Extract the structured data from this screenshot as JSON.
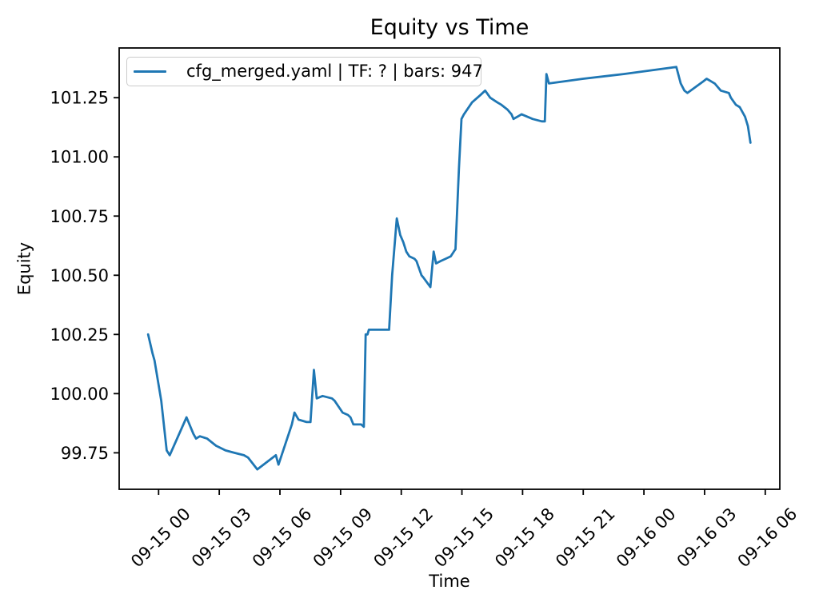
{
  "figure": {
    "title": "Equity vs Time",
    "x_axis_label": "Time",
    "y_axis_label": "Equity"
  },
  "legend": {
    "position": "upper left",
    "entries": [
      {
        "label": "cfg_merged.yaml | TF: ? | bars: 947",
        "color": "#1f77b4"
      }
    ]
  },
  "colors": {
    "line": "#1f77b4",
    "text": "#000000",
    "spine": "#000000",
    "legend_border": "#cbcbcb",
    "background": "#ffffff"
  },
  "chart_data": {
    "type": "line",
    "title": "Equity vs Time",
    "xlabel": "Time",
    "ylabel": "Equity",
    "grid": false,
    "legend_position": "upper left",
    "x_unit": "hours relative to 09-15 00",
    "xlim_hours": [
      -1.95,
      30.72
    ],
    "ylim": [
      99.596,
      101.46
    ],
    "x_ticks": {
      "hours": [
        0,
        3,
        6,
        9,
        12,
        15,
        18,
        21,
        24,
        27,
        30
      ],
      "labels": [
        "09-15 00",
        "09-15 03",
        "09-15 06",
        "09-15 09",
        "09-15 12",
        "09-15 15",
        "09-15 18",
        "09-15 21",
        "09-16 00",
        "09-16 03",
        "09-16 06"
      ]
    },
    "y_ticks": {
      "values": [
        99.75,
        100.0,
        100.25,
        100.5,
        100.75,
        101.0,
        101.25
      ],
      "labels": [
        "99.75",
        "100.00",
        "100.25",
        "100.50",
        "100.75",
        "101.00",
        "101.25"
      ]
    },
    "series": [
      {
        "name": "cfg_merged.yaml | TF: ? | bars: 947",
        "color": "#1f77b4",
        "points": [
          [
            -0.52,
            100.25
          ],
          [
            -0.3,
            100.17
          ],
          [
            -0.2,
            100.14
          ],
          [
            0.13,
            99.97
          ],
          [
            0.4,
            99.76
          ],
          [
            0.55,
            99.74
          ],
          [
            1.38,
            99.9
          ],
          [
            1.72,
            99.83
          ],
          [
            1.85,
            99.81
          ],
          [
            2.04,
            99.82
          ],
          [
            2.4,
            99.81
          ],
          [
            2.84,
            99.78
          ],
          [
            3.31,
            99.76
          ],
          [
            3.75,
            99.75
          ],
          [
            4.22,
            99.74
          ],
          [
            4.42,
            99.73
          ],
          [
            4.88,
            99.68
          ],
          [
            5.8,
            99.74
          ],
          [
            5.93,
            99.7
          ],
          [
            6.59,
            99.87
          ],
          [
            6.72,
            99.92
          ],
          [
            6.92,
            99.89
          ],
          [
            7.32,
            99.88
          ],
          [
            7.51,
            99.88
          ],
          [
            7.68,
            100.1
          ],
          [
            7.82,
            99.98
          ],
          [
            8.11,
            99.99
          ],
          [
            8.57,
            99.98
          ],
          [
            8.7,
            99.97
          ],
          [
            9.1,
            99.92
          ],
          [
            9.36,
            99.91
          ],
          [
            9.49,
            99.9
          ],
          [
            9.63,
            99.87
          ],
          [
            9.76,
            99.87
          ],
          [
            10.02,
            99.87
          ],
          [
            10.15,
            99.86
          ],
          [
            10.24,
            100.25
          ],
          [
            10.33,
            100.25
          ],
          [
            10.4,
            100.27
          ],
          [
            11.4,
            100.27
          ],
          [
            11.55,
            100.5
          ],
          [
            11.78,
            100.74
          ],
          [
            11.95,
            100.67
          ],
          [
            12.1,
            100.64
          ],
          [
            12.25,
            100.6
          ],
          [
            12.4,
            100.58
          ],
          [
            12.65,
            100.57
          ],
          [
            12.75,
            100.56
          ],
          [
            13.0,
            100.5
          ],
          [
            13.1,
            100.49
          ],
          [
            13.44,
            100.45
          ],
          [
            13.6,
            100.6
          ],
          [
            13.72,
            100.55
          ],
          [
            13.95,
            100.56
          ],
          [
            14.2,
            100.57
          ],
          [
            14.45,
            100.58
          ],
          [
            14.6,
            100.6
          ],
          [
            14.68,
            100.61
          ],
          [
            14.85,
            100.95
          ],
          [
            14.98,
            101.16
          ],
          [
            15.1,
            101.18
          ],
          [
            15.5,
            101.23
          ],
          [
            15.9,
            101.26
          ],
          [
            16.15,
            101.28
          ],
          [
            16.4,
            101.25
          ],
          [
            16.75,
            101.23
          ],
          [
            16.95,
            101.22
          ],
          [
            17.25,
            101.2
          ],
          [
            17.45,
            101.18
          ],
          [
            17.55,
            101.16
          ],
          [
            17.75,
            101.17
          ],
          [
            17.95,
            101.18
          ],
          [
            18.5,
            101.16
          ],
          [
            18.95,
            101.15
          ],
          [
            19.1,
            101.15
          ],
          [
            19.18,
            101.35
          ],
          [
            19.3,
            101.31
          ],
          [
            21.0,
            101.33
          ],
          [
            23.0,
            101.35
          ],
          [
            25.6,
            101.38
          ],
          [
            25.82,
            101.31
          ],
          [
            26.0,
            101.28
          ],
          [
            26.15,
            101.27
          ],
          [
            26.95,
            101.32
          ],
          [
            27.1,
            101.33
          ],
          [
            27.5,
            101.31
          ],
          [
            27.8,
            101.28
          ],
          [
            28.2,
            101.27
          ],
          [
            28.3,
            101.25
          ],
          [
            28.55,
            101.22
          ],
          [
            28.74,
            101.21
          ],
          [
            29.0,
            101.17
          ],
          [
            29.14,
            101.13
          ],
          [
            29.27,
            101.06
          ]
        ]
      }
    ]
  }
}
